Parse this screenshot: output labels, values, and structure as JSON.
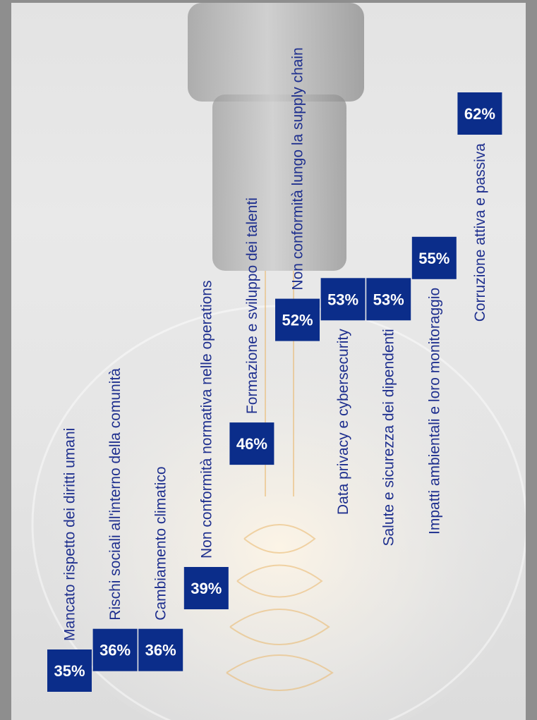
{
  "chart_data": {
    "type": "bar",
    "title": "",
    "xlabel": "",
    "ylabel": "",
    "categories": [
      "Mancato rispetto dei diritti umani",
      "Rischi sociali all'interno della comunità",
      "Cambiamento climatico",
      "Non conformità normativa nelle operations",
      "Formazione e sviluppo dei talenti",
      "Non conformità lungo la supply chain",
      "Data privacy e cybersecurity",
      "Salute e sicurezza dei dipendenti",
      "Impatti ambientali e loro monitoraggio",
      "Corruzione attiva e passiva"
    ],
    "values": [
      35,
      36,
      36,
      39,
      46,
      52,
      53,
      53,
      55,
      62
    ],
    "value_labels": [
      "35%",
      "36%",
      "36%",
      "39%",
      "46%",
      "52%",
      "53%",
      "53%",
      "55%",
      "62%"
    ],
    "unit": "%",
    "colors": {
      "bar": "#0b2d8a",
      "label": "#1e2f8e",
      "value_text": "#ffffff"
    },
    "grid": false,
    "legend": "none"
  }
}
